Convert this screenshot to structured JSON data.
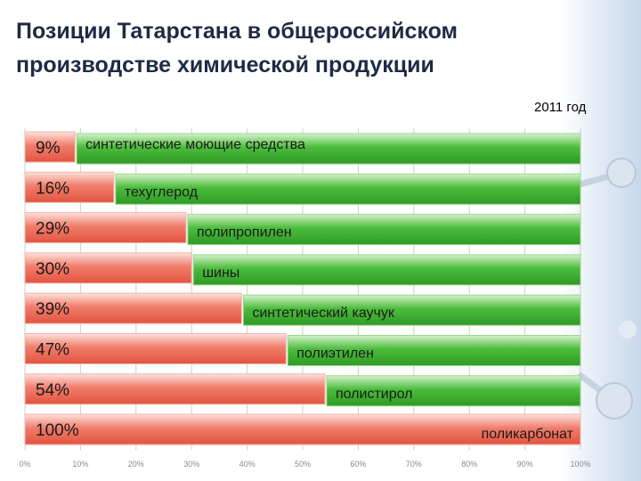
{
  "title": "Позиции Татарстана в общероссийском производстве химической продукции",
  "year_label": "2011 год",
  "chart_data": {
    "type": "bar",
    "orientation": "horizontal",
    "stacked": true,
    "categories": [
      "синтетические моющие средства",
      "техуглерод",
      "полипропилен",
      "шины",
      "синтетический каучук",
      "полиэтилен",
      "полистирол",
      "поликарбонат"
    ],
    "values": [
      9,
      16,
      29,
      30,
      39,
      47,
      54,
      100
    ],
    "value_labels": [
      "9%",
      "16%",
      "29%",
      "30%",
      "39%",
      "47%",
      "54%",
      "100%"
    ],
    "xlim": [
      0,
      100
    ],
    "xticks": [
      "0%",
      "10%",
      "20%",
      "30%",
      "40%",
      "50%",
      "60%",
      "70%",
      "80%",
      "90%",
      "100%"
    ],
    "colors": {
      "share": "#f07d6c",
      "remainder": "#4cbc3c"
    },
    "grid": true
  }
}
